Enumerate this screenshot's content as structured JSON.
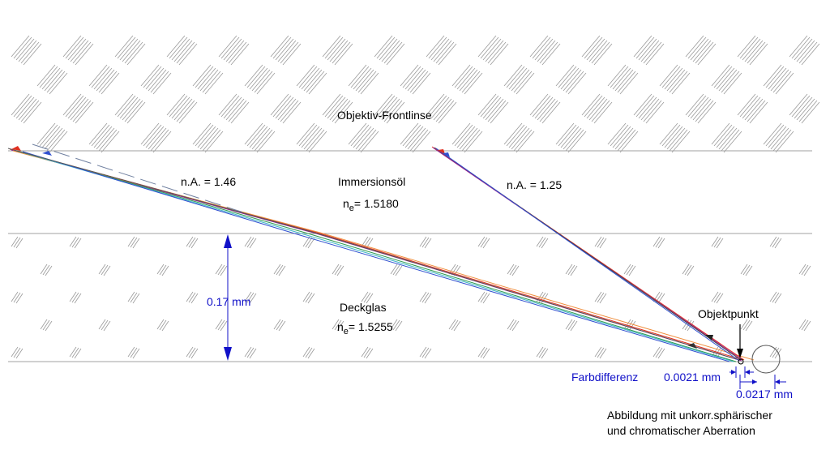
{
  "labels": {
    "frontlens": "Objektiv-Frontlinse",
    "immersion_oil": "Immersionsöl",
    "oil_index_prefix": "n",
    "oil_index_sub": "e",
    "oil_index_value": "= 1.5180",
    "cover_glass": "Deckglas",
    "glass_index_prefix": "n",
    "glass_index_sub": "e",
    "glass_index_value": "= 1.5255",
    "na_left": "n.A. = 1.46",
    "na_right": "n.A. = 1.25",
    "thickness": "0.17 mm",
    "object_point": "Objektpunkt",
    "color_difference": "Farbdifferenz",
    "color_difference_value": "0.0021 mm",
    "spherical_value": "0.0217 mm",
    "caption_line1": "Abbildung mit unkorr.sphärischer",
    "caption_line2": "und chromatischer Aberration"
  },
  "colors": {
    "dimension_blue": "#1010c8",
    "ray_red": "#e03020",
    "ray_purple": "#9b1f8f",
    "ray_green": "#2f9a4f",
    "ray_cyan": "#3fb6c8",
    "ray_blue": "#3050d0",
    "ray_orange": "#f09040",
    "ray_dark": "#333333",
    "hatch": "#9a9a9a"
  }
}
